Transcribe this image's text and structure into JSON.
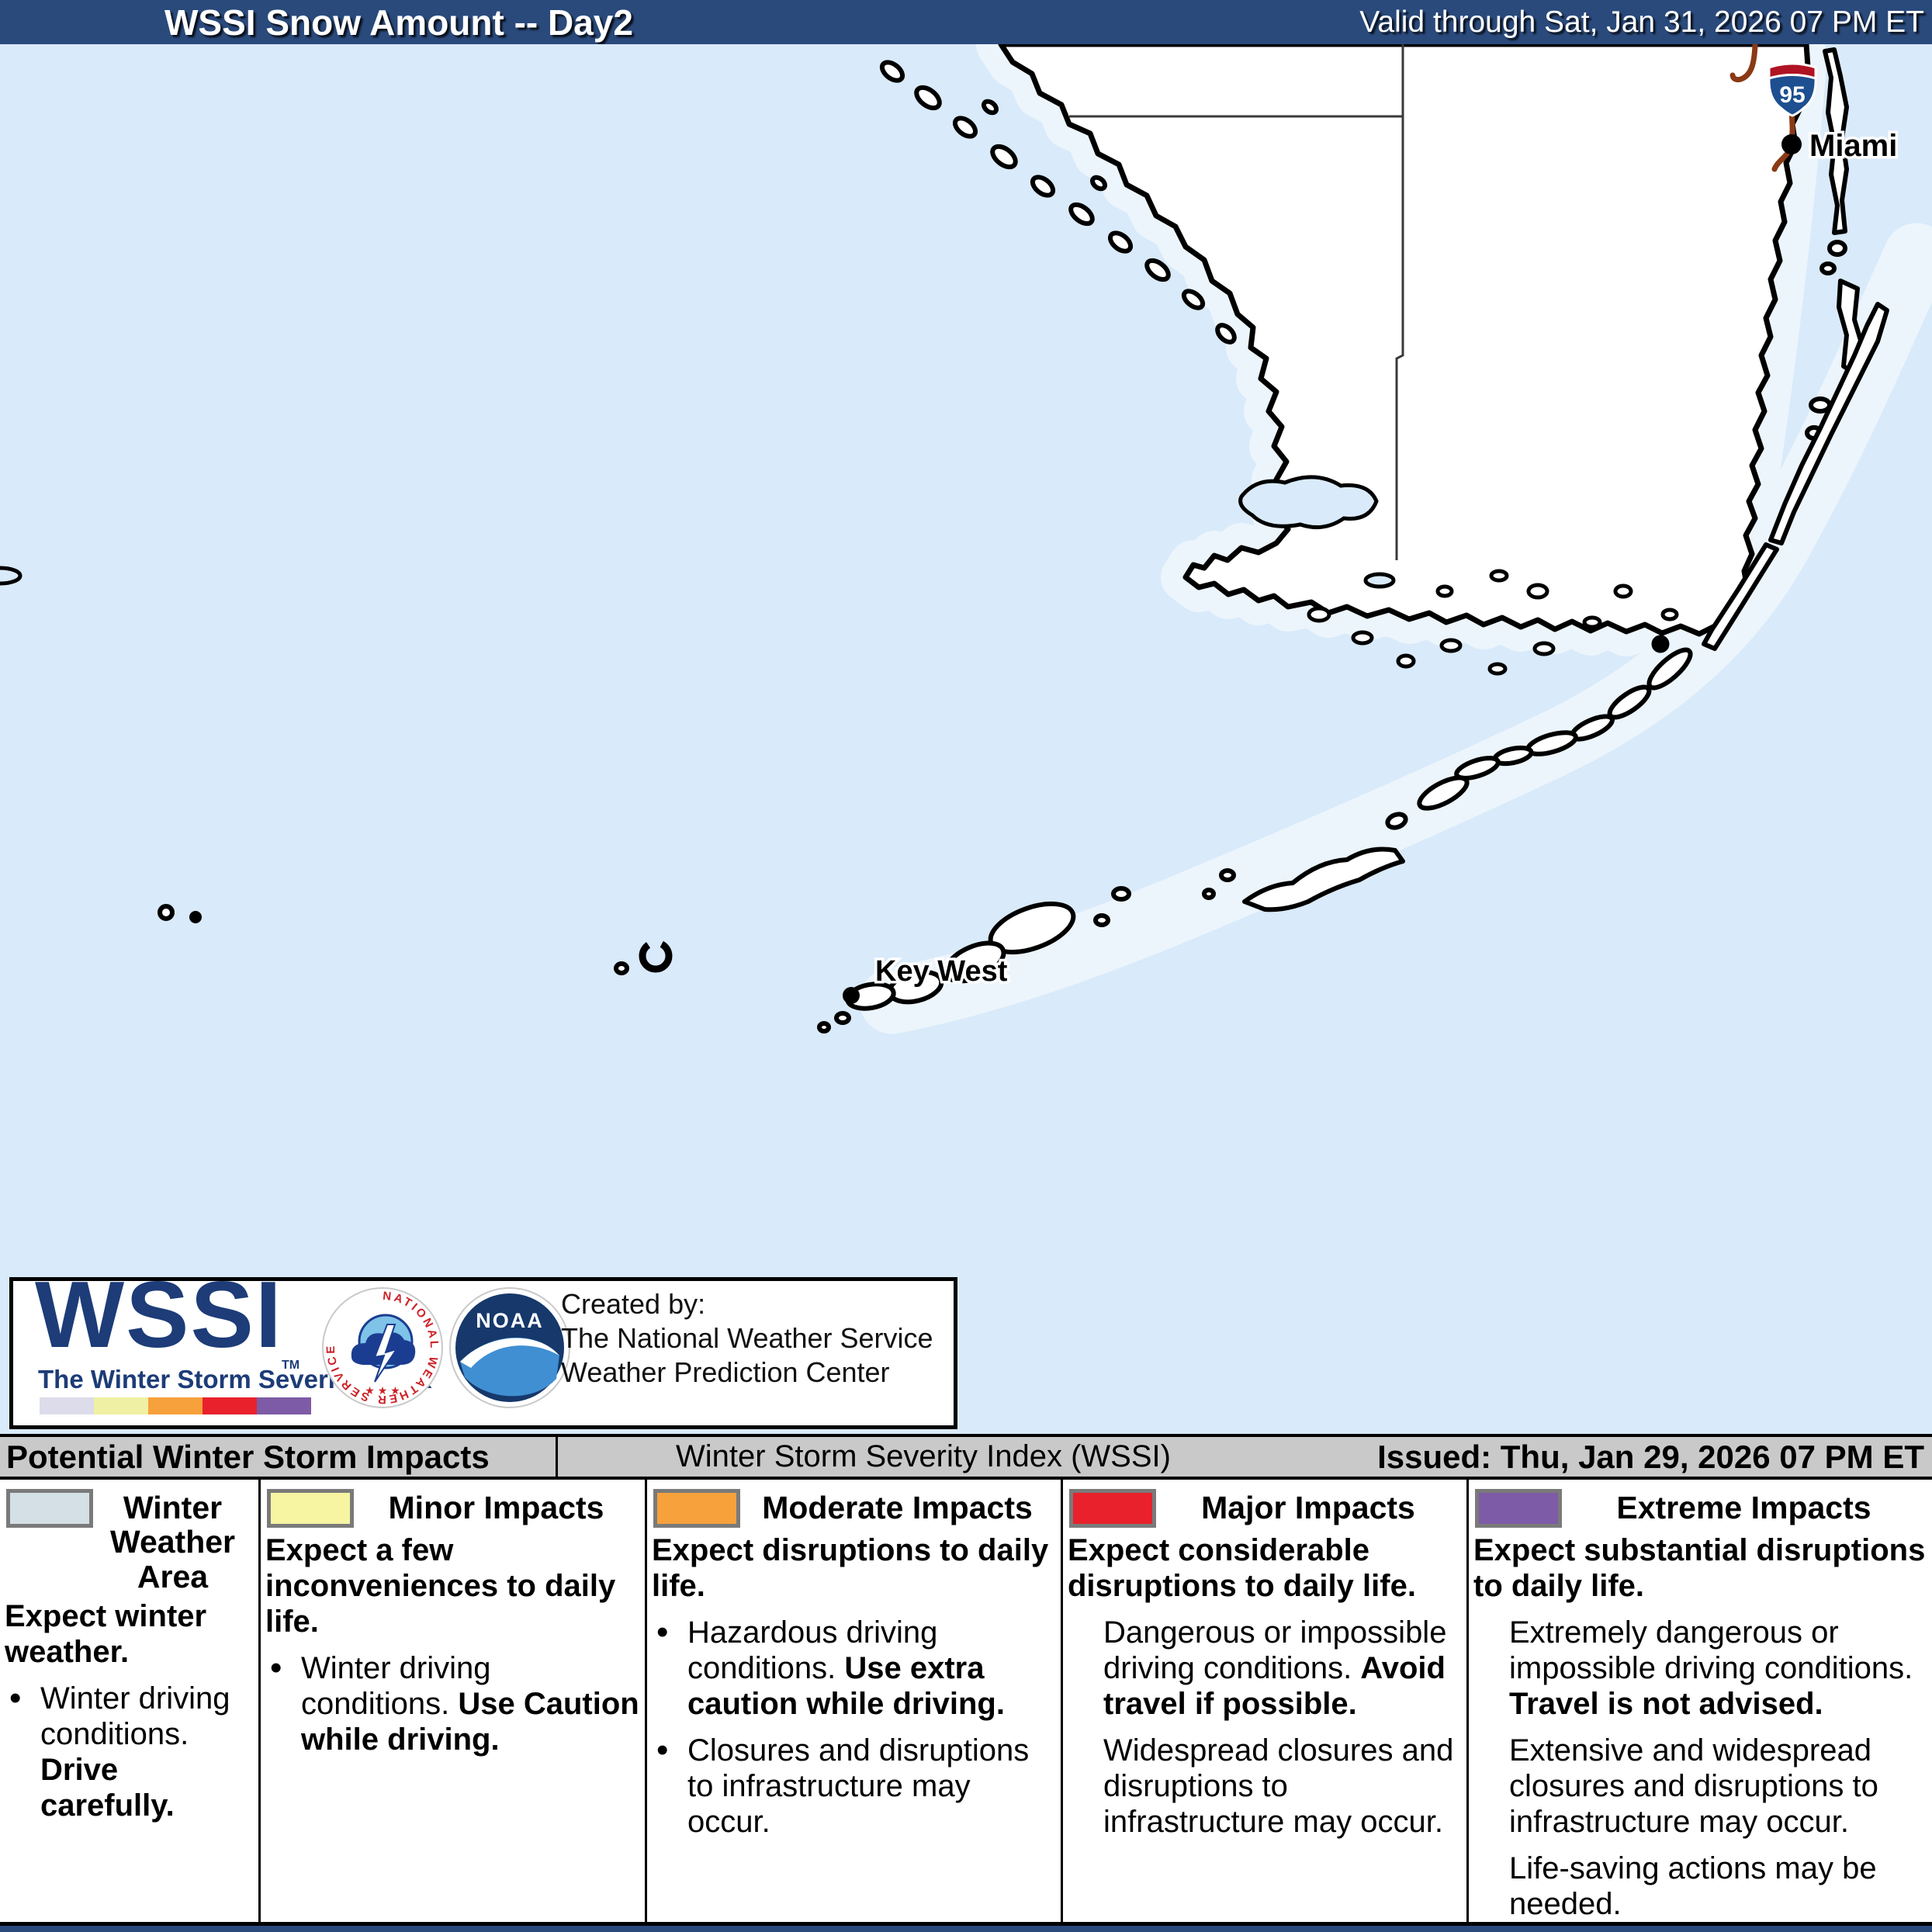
{
  "header": {
    "title": "WSSI Snow Amount -- Day2",
    "valid": "Valid through Sat, Jan 31, 2026 07 PM ET",
    "bg_color": "#2a4a7c"
  },
  "map": {
    "water_color": "#d9eafa",
    "shallow_color": "#ecf5fc",
    "land_color": "#ffffff",
    "shield": {
      "number": "95"
    },
    "cities": [
      {
        "name": "Miami"
      },
      {
        "name": "Key West"
      }
    ]
  },
  "logo_box": {
    "wssi": "WSSI",
    "tm": "TM",
    "tagline": "The Winter Storm Severity Index",
    "scale_colors": [
      "#dcdceb",
      "#eff0a3",
      "#f6a13b",
      "#e8212c",
      "#7d5ba6"
    ],
    "noaa_text": "NOAA",
    "created_by": [
      "Created by:",
      "The National Weather Service",
      "Weather Prediction Center"
    ]
  },
  "impact_bar": {
    "left": "Potential Winter Storm Impacts",
    "center": "Winter Storm Severity Index (WSSI)",
    "right": "Issued: Thu, Jan 29, 2026 07 PM ET"
  },
  "legend": {
    "columns": [
      {
        "title": "Winter Weather Area",
        "color": "#d4dfe6",
        "bullet": "dot",
        "intro": [
          {
            "t": "Expect winter weather.",
            "b": true
          }
        ],
        "items": [
          [
            {
              "t": "Winter driving conditions. ",
              "b": false
            },
            {
              "t": "Drive carefully.",
              "b": true
            }
          ]
        ]
      },
      {
        "title": "Minor Impacts",
        "color": "#f7f4a2",
        "bullet": "dot",
        "intro": [
          {
            "t": "Expect a few inconveniences to daily life.",
            "b": true
          }
        ],
        "items": [
          [
            {
              "t": "Winter driving conditions. ",
              "b": false
            },
            {
              "t": "Use Caution while driving.",
              "b": true
            }
          ]
        ]
      },
      {
        "title": "Moderate Impacts",
        "color": "#f6a13b",
        "bullet": "dot",
        "intro": [
          {
            "t": "Expect disruptions to daily life.",
            "b": true
          }
        ],
        "items": [
          [
            {
              "t": "Hazardous driving conditions. ",
              "b": false
            },
            {
              "t": "Use extra caution while driving.",
              "b": true
            }
          ],
          [
            {
              "t": "Closures and disruptions to infrastructure may occur.",
              "b": false
            }
          ]
        ]
      },
      {
        "title": "Major Impacts",
        "color": "#e8212c",
        "bullet": "none",
        "intro": [
          {
            "t": "Expect considerable disruptions to daily life.",
            "b": true
          }
        ],
        "items": [
          [
            {
              "t": "Dangerous or impossible driving conditions. ",
              "b": false
            },
            {
              "t": "Avoid travel if possible.",
              "b": true
            }
          ],
          [
            {
              "t": "Widespread closures and disruptions to infrastructure may occur.",
              "b": false
            }
          ]
        ]
      },
      {
        "title": "Extreme Impacts",
        "color": "#7d5ba6",
        "bullet": "none",
        "intro": [
          {
            "t": "Expect substantial disruptions to daily life.",
            "b": true
          }
        ],
        "items": [
          [
            {
              "t": "Extremely dangerous or impossible driving conditions. ",
              "b": false
            },
            {
              "t": "Travel is not advised.",
              "b": true
            }
          ],
          [
            {
              "t": "Extensive and widespread closures and disruptions to infrastructure may occur.",
              "b": false
            }
          ],
          [
            {
              "t": "Life-saving actions may be needed.",
              "b": false
            }
          ]
        ]
      }
    ]
  }
}
